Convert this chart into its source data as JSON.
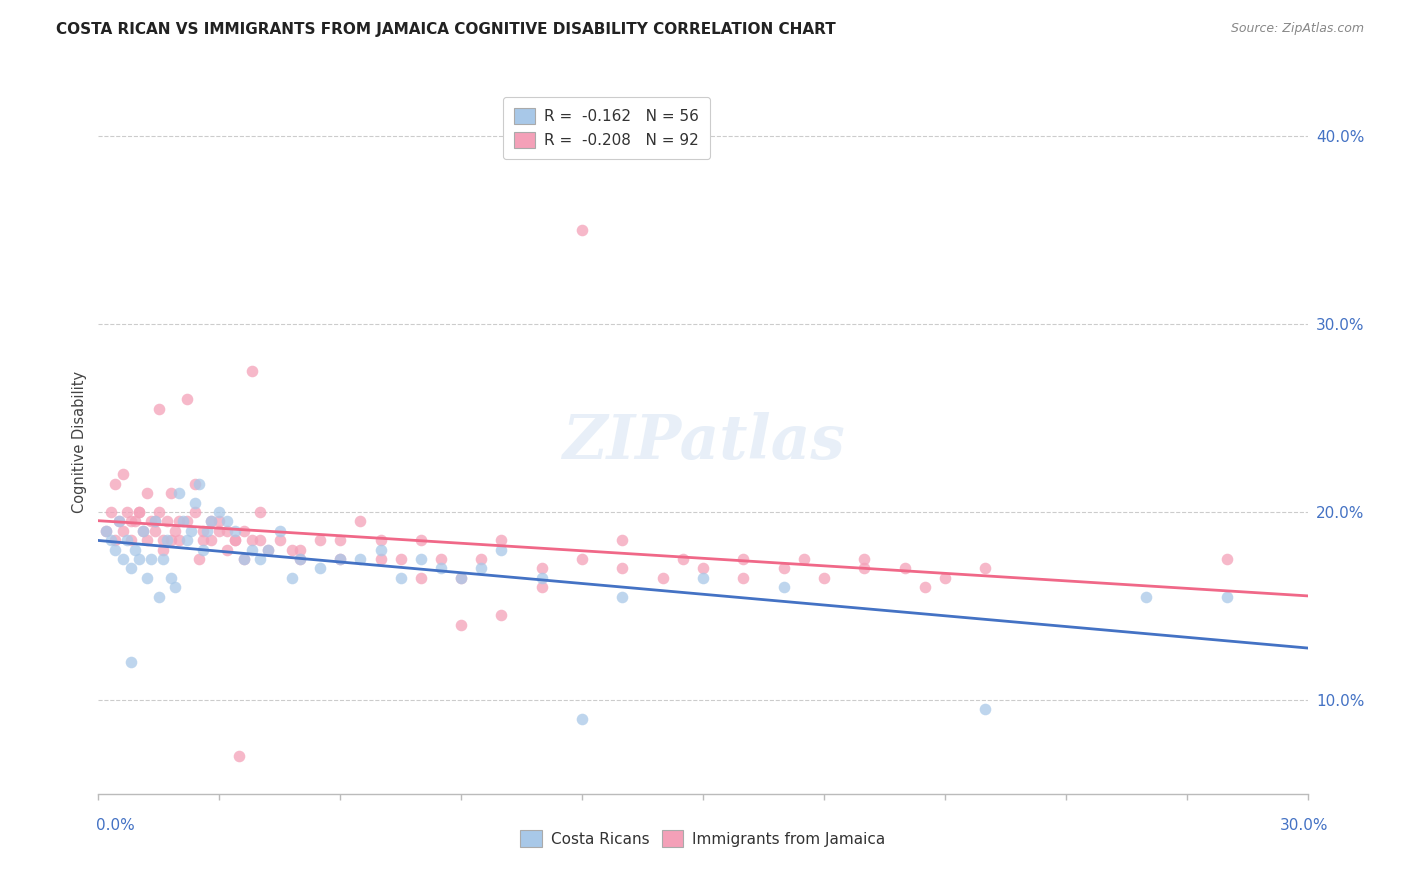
{
  "title": "COSTA RICAN VS IMMIGRANTS FROM JAMAICA COGNITIVE DISABILITY CORRELATION CHART",
  "source": "Source: ZipAtlas.com",
  "ylabel": "Cognitive Disability",
  "xlim": [
    0.0,
    0.3
  ],
  "ylim": [
    0.05,
    0.425
  ],
  "yticks": [
    0.1,
    0.2,
    0.3,
    0.4
  ],
  "ytick_labels": [
    "10.0%",
    "20.0%",
    "30.0%",
    "40.0%"
  ],
  "legend_r1": "R =  -0.162   N = 56",
  "legend_r2": "R =  -0.208   N = 92",
  "color_blue": "#a8c8e8",
  "color_pink": "#f4a0b8",
  "line_blue": "#4472c4",
  "line_pink": "#f06888",
  "watermark": "ZIPatlas",
  "costa_ricans_x": [
    0.002,
    0.003,
    0.004,
    0.005,
    0.006,
    0.007,
    0.008,
    0.009,
    0.01,
    0.011,
    0.012,
    0.013,
    0.014,
    0.015,
    0.016,
    0.017,
    0.018,
    0.019,
    0.02,
    0.021,
    0.022,
    0.023,
    0.024,
    0.025,
    0.026,
    0.027,
    0.028,
    0.03,
    0.032,
    0.034,
    0.036,
    0.038,
    0.04,
    0.042,
    0.045,
    0.048,
    0.05,
    0.055,
    0.06,
    0.065,
    0.07,
    0.075,
    0.08,
    0.085,
    0.09,
    0.095,
    0.1,
    0.11,
    0.12,
    0.13,
    0.15,
    0.17,
    0.22,
    0.26,
    0.28,
    0.008
  ],
  "costa_ricans_y": [
    0.19,
    0.185,
    0.18,
    0.195,
    0.175,
    0.185,
    0.17,
    0.18,
    0.175,
    0.19,
    0.165,
    0.175,
    0.195,
    0.155,
    0.175,
    0.185,
    0.165,
    0.16,
    0.21,
    0.195,
    0.185,
    0.19,
    0.205,
    0.215,
    0.18,
    0.19,
    0.195,
    0.2,
    0.195,
    0.19,
    0.175,
    0.18,
    0.175,
    0.18,
    0.19,
    0.165,
    0.175,
    0.17,
    0.175,
    0.175,
    0.18,
    0.165,
    0.175,
    0.17,
    0.165,
    0.17,
    0.18,
    0.165,
    0.09,
    0.155,
    0.165,
    0.16,
    0.095,
    0.155,
    0.155,
    0.12
  ],
  "jamaica_x": [
    0.002,
    0.003,
    0.004,
    0.005,
    0.006,
    0.007,
    0.008,
    0.009,
    0.01,
    0.011,
    0.012,
    0.013,
    0.014,
    0.015,
    0.016,
    0.017,
    0.018,
    0.019,
    0.02,
    0.022,
    0.024,
    0.026,
    0.028,
    0.03,
    0.032,
    0.034,
    0.036,
    0.038,
    0.04,
    0.042,
    0.045,
    0.048,
    0.05,
    0.055,
    0.06,
    0.065,
    0.07,
    0.075,
    0.08,
    0.085,
    0.09,
    0.095,
    0.1,
    0.11,
    0.12,
    0.13,
    0.14,
    0.15,
    0.16,
    0.17,
    0.18,
    0.19,
    0.2,
    0.21,
    0.22,
    0.004,
    0.006,
    0.008,
    0.01,
    0.012,
    0.014,
    0.016,
    0.018,
    0.02,
    0.022,
    0.024,
    0.026,
    0.028,
    0.03,
    0.032,
    0.034,
    0.036,
    0.038,
    0.04,
    0.05,
    0.06,
    0.07,
    0.08,
    0.09,
    0.1,
    0.11,
    0.12,
    0.13,
    0.145,
    0.16,
    0.175,
    0.19,
    0.205,
    0.28,
    0.015,
    0.025,
    0.035
  ],
  "jamaica_y": [
    0.19,
    0.2,
    0.185,
    0.195,
    0.19,
    0.2,
    0.185,
    0.195,
    0.2,
    0.19,
    0.185,
    0.195,
    0.19,
    0.2,
    0.185,
    0.195,
    0.185,
    0.19,
    0.195,
    0.195,
    0.2,
    0.185,
    0.195,
    0.19,
    0.19,
    0.185,
    0.19,
    0.185,
    0.185,
    0.18,
    0.185,
    0.18,
    0.18,
    0.185,
    0.175,
    0.195,
    0.185,
    0.175,
    0.185,
    0.175,
    0.165,
    0.175,
    0.185,
    0.17,
    0.175,
    0.17,
    0.165,
    0.17,
    0.175,
    0.17,
    0.165,
    0.17,
    0.17,
    0.165,
    0.17,
    0.215,
    0.22,
    0.195,
    0.2,
    0.21,
    0.195,
    0.18,
    0.21,
    0.185,
    0.26,
    0.215,
    0.19,
    0.185,
    0.195,
    0.18,
    0.185,
    0.175,
    0.275,
    0.2,
    0.175,
    0.185,
    0.175,
    0.165,
    0.14,
    0.145,
    0.16,
    0.35,
    0.185,
    0.175,
    0.165,
    0.175,
    0.175,
    0.16,
    0.175,
    0.255,
    0.175,
    0.07
  ]
}
